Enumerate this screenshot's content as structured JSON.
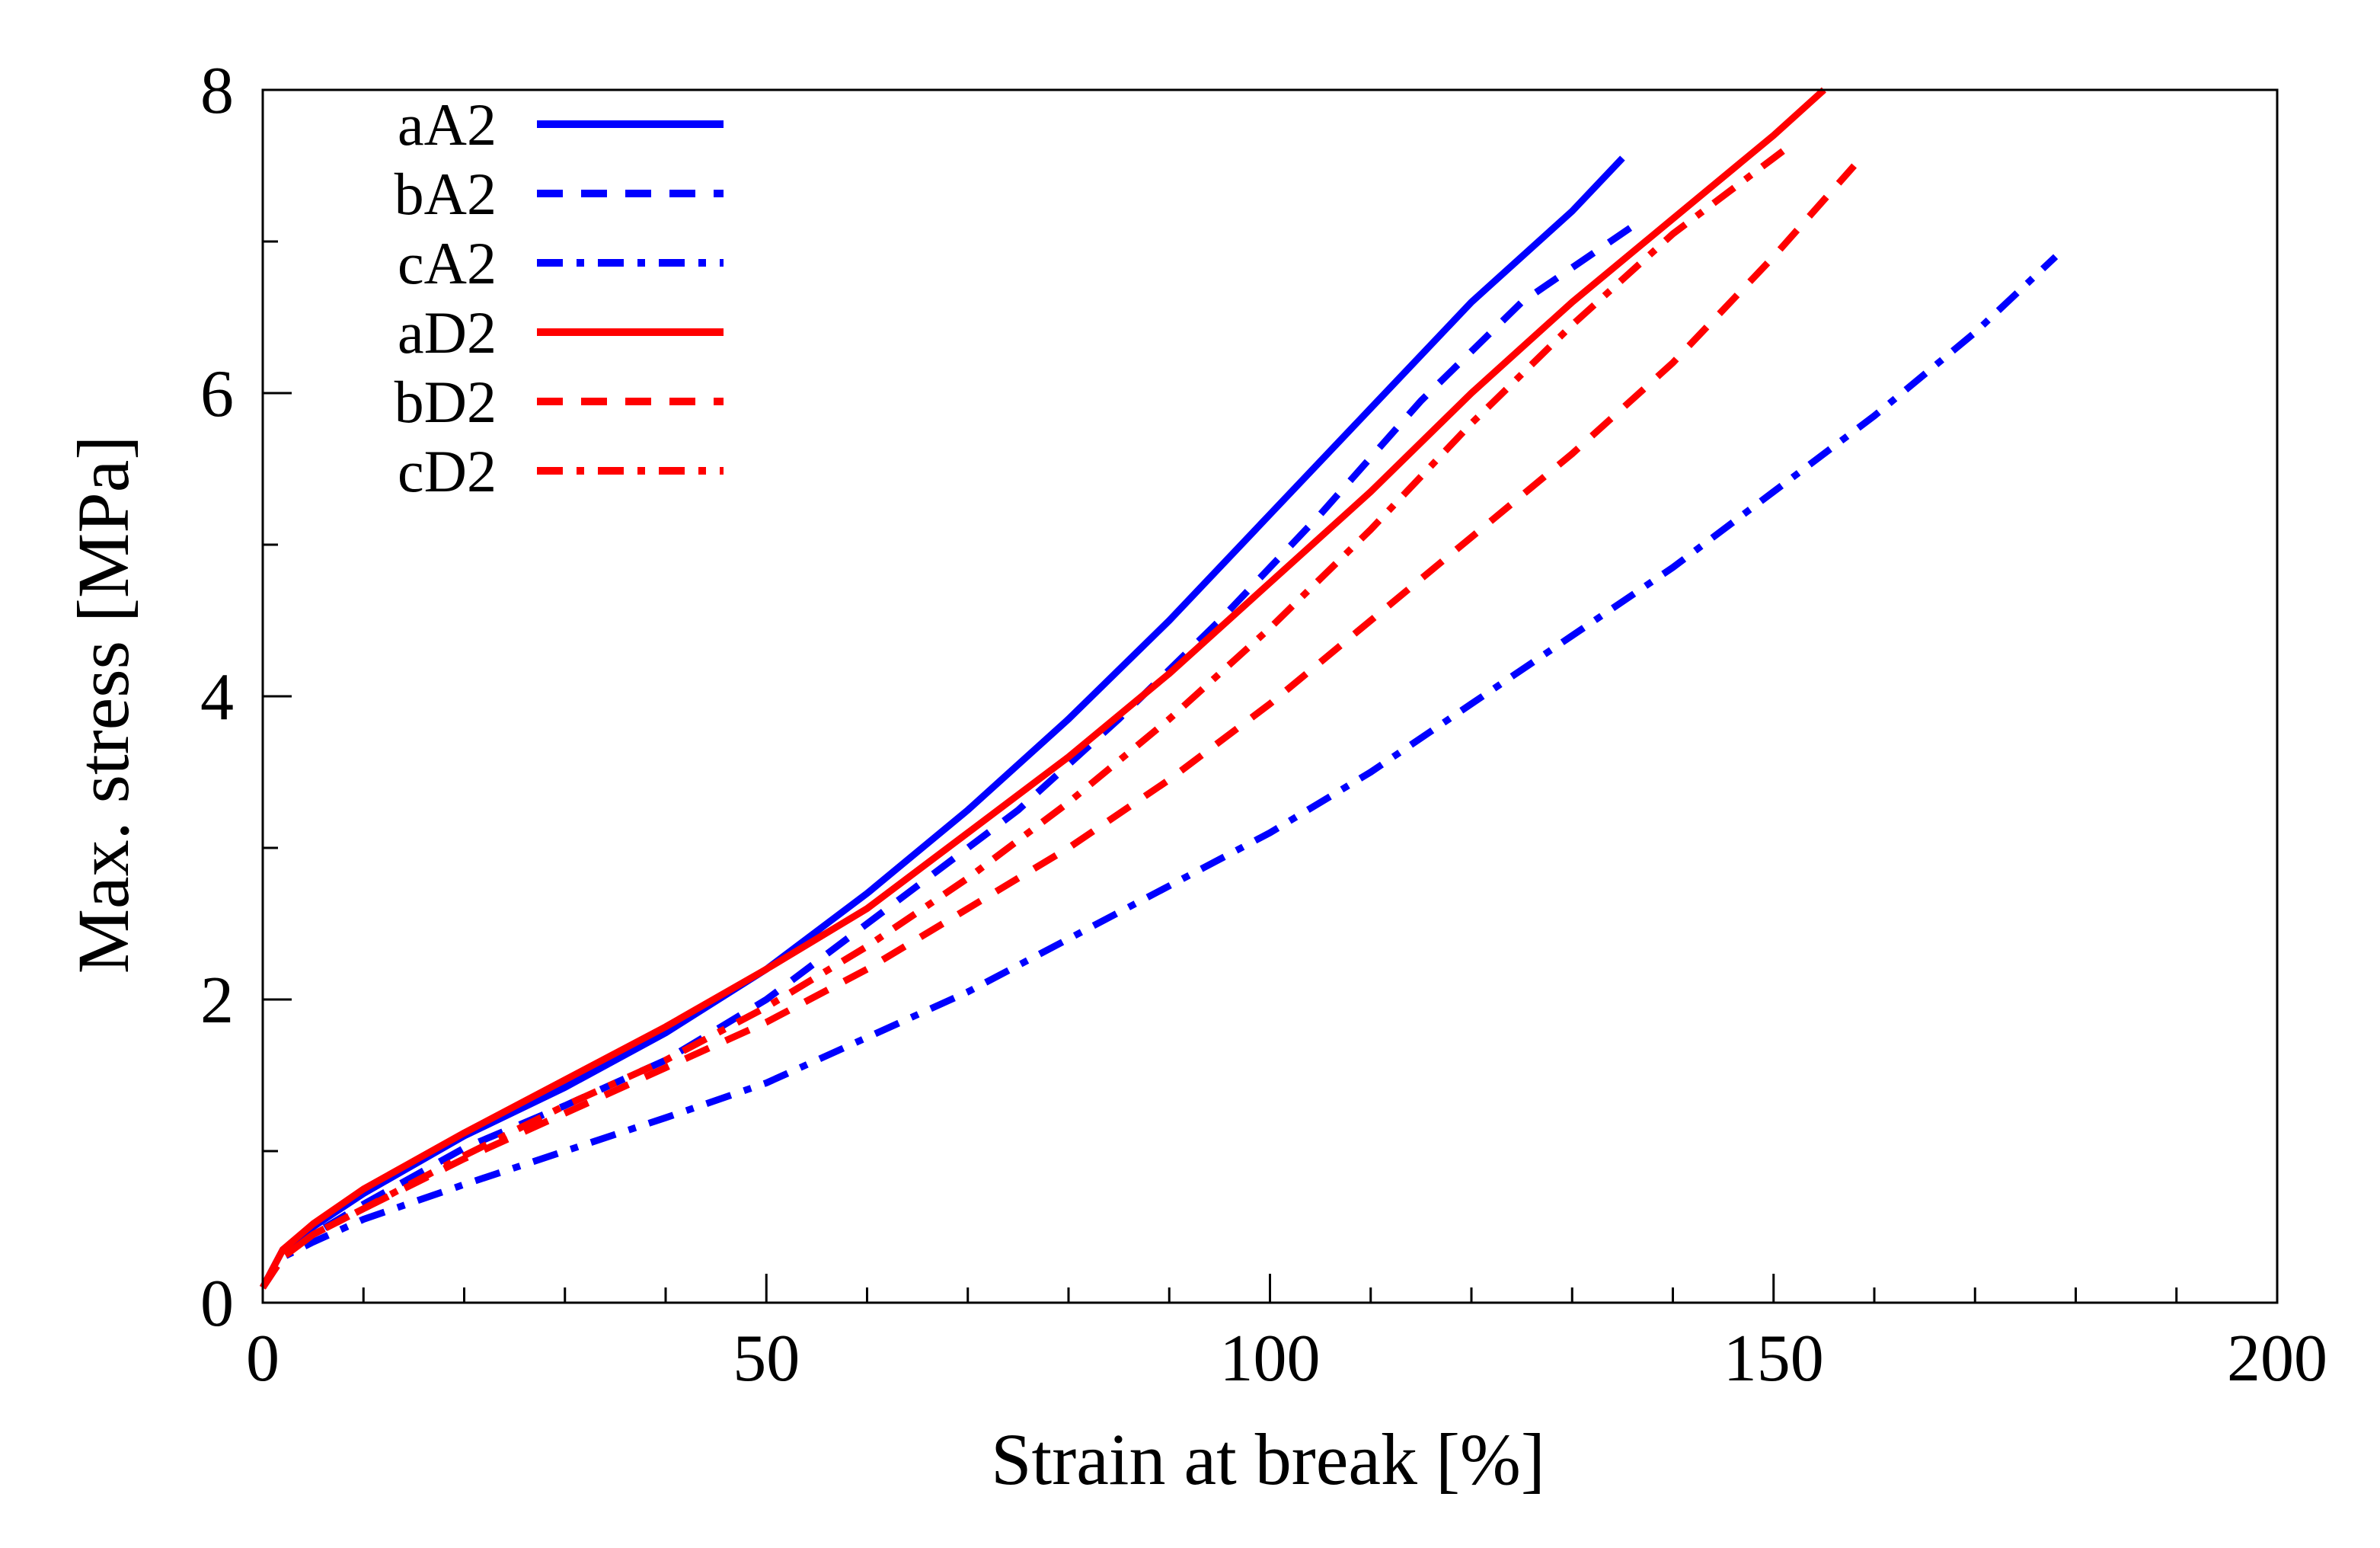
{
  "chart_data": {
    "type": "line",
    "title": "",
    "xlabel": "Strain at break [%]",
    "ylabel": "Max. stress [MPa]",
    "xlim": [
      0,
      200
    ],
    "ylim": [
      0,
      8
    ],
    "x_ticks": [
      0,
      50,
      100,
      150,
      200
    ],
    "y_ticks": [
      0,
      2,
      4,
      6,
      8
    ],
    "x_tick_labels": [
      "0",
      "50",
      "100",
      "150",
      "200"
    ],
    "y_tick_labels": [
      "0",
      "2",
      "4",
      "6",
      "8"
    ],
    "x_minor_step": 10,
    "y_minor_step": 1,
    "grid": false,
    "legend_position": "top-left",
    "series": [
      {
        "name": "aA2",
        "color": "#0000ff",
        "style": "solid",
        "x": [
          0,
          2,
          5,
          10,
          20,
          30,
          40,
          50,
          60,
          70,
          80,
          90,
          100,
          110,
          120,
          130,
          135
        ],
        "y": [
          0.1,
          0.35,
          0.5,
          0.72,
          1.1,
          1.42,
          1.78,
          2.2,
          2.7,
          3.25,
          3.85,
          4.5,
          5.2,
          5.9,
          6.6,
          7.2,
          7.55
        ]
      },
      {
        "name": "bA2",
        "color": "#0000ff",
        "style": "dash",
        "x": [
          0,
          2,
          5,
          10,
          20,
          30,
          40,
          50,
          55,
          65,
          75,
          85,
          95,
          105,
          115,
          125,
          136
        ],
        "y": [
          0.1,
          0.32,
          0.45,
          0.65,
          1.02,
          1.3,
          1.6,
          2.0,
          2.25,
          2.75,
          3.25,
          3.85,
          4.5,
          5.2,
          5.95,
          6.6,
          7.1
        ]
      },
      {
        "name": "cA2",
        "color": "#0000ff",
        "style": "dashdot",
        "x": [
          0,
          2,
          5,
          10,
          20,
          30,
          40,
          50,
          60,
          70,
          80,
          90,
          100,
          110,
          120,
          130,
          140,
          150,
          160,
          170,
          178
        ],
        "y": [
          0.1,
          0.3,
          0.4,
          0.55,
          0.78,
          1.0,
          1.22,
          1.45,
          1.75,
          2.05,
          2.4,
          2.75,
          3.1,
          3.5,
          3.95,
          4.4,
          4.85,
          5.35,
          5.85,
          6.4,
          6.9
        ]
      },
      {
        "name": "aD2",
        "color": "#ff0000",
        "style": "solid",
        "x": [
          0,
          2,
          5,
          10,
          20,
          30,
          40,
          50,
          60,
          70,
          80,
          90,
          100,
          110,
          120,
          130,
          140,
          150,
          155
        ],
        "y": [
          0.1,
          0.35,
          0.52,
          0.75,
          1.12,
          1.47,
          1.82,
          2.2,
          2.6,
          3.1,
          3.6,
          4.15,
          4.75,
          5.35,
          6.0,
          6.6,
          7.15,
          7.7,
          8.0
        ]
      },
      {
        "name": "bD2",
        "color": "#ff0000",
        "style": "dash",
        "x": [
          0,
          2,
          5,
          10,
          20,
          30,
          40,
          50,
          60,
          70,
          80,
          90,
          100,
          110,
          120,
          130,
          140,
          150,
          158
        ],
        "y": [
          0.1,
          0.3,
          0.45,
          0.62,
          0.95,
          1.25,
          1.55,
          1.85,
          2.2,
          2.6,
          3.0,
          3.45,
          3.95,
          4.5,
          5.05,
          5.6,
          6.2,
          6.9,
          7.5
        ]
      },
      {
        "name": "cD2",
        "color": "#ff0000",
        "style": "dashdot",
        "x": [
          0,
          2,
          5,
          10,
          20,
          30,
          40,
          50,
          60,
          70,
          80,
          90,
          100,
          110,
          120,
          130,
          140,
          150,
          152
        ],
        "y": [
          0.1,
          0.3,
          0.45,
          0.62,
          0.97,
          1.3,
          1.6,
          1.95,
          2.35,
          2.8,
          3.3,
          3.85,
          4.45,
          5.1,
          5.8,
          6.45,
          7.05,
          7.55,
          7.65
        ]
      }
    ]
  }
}
